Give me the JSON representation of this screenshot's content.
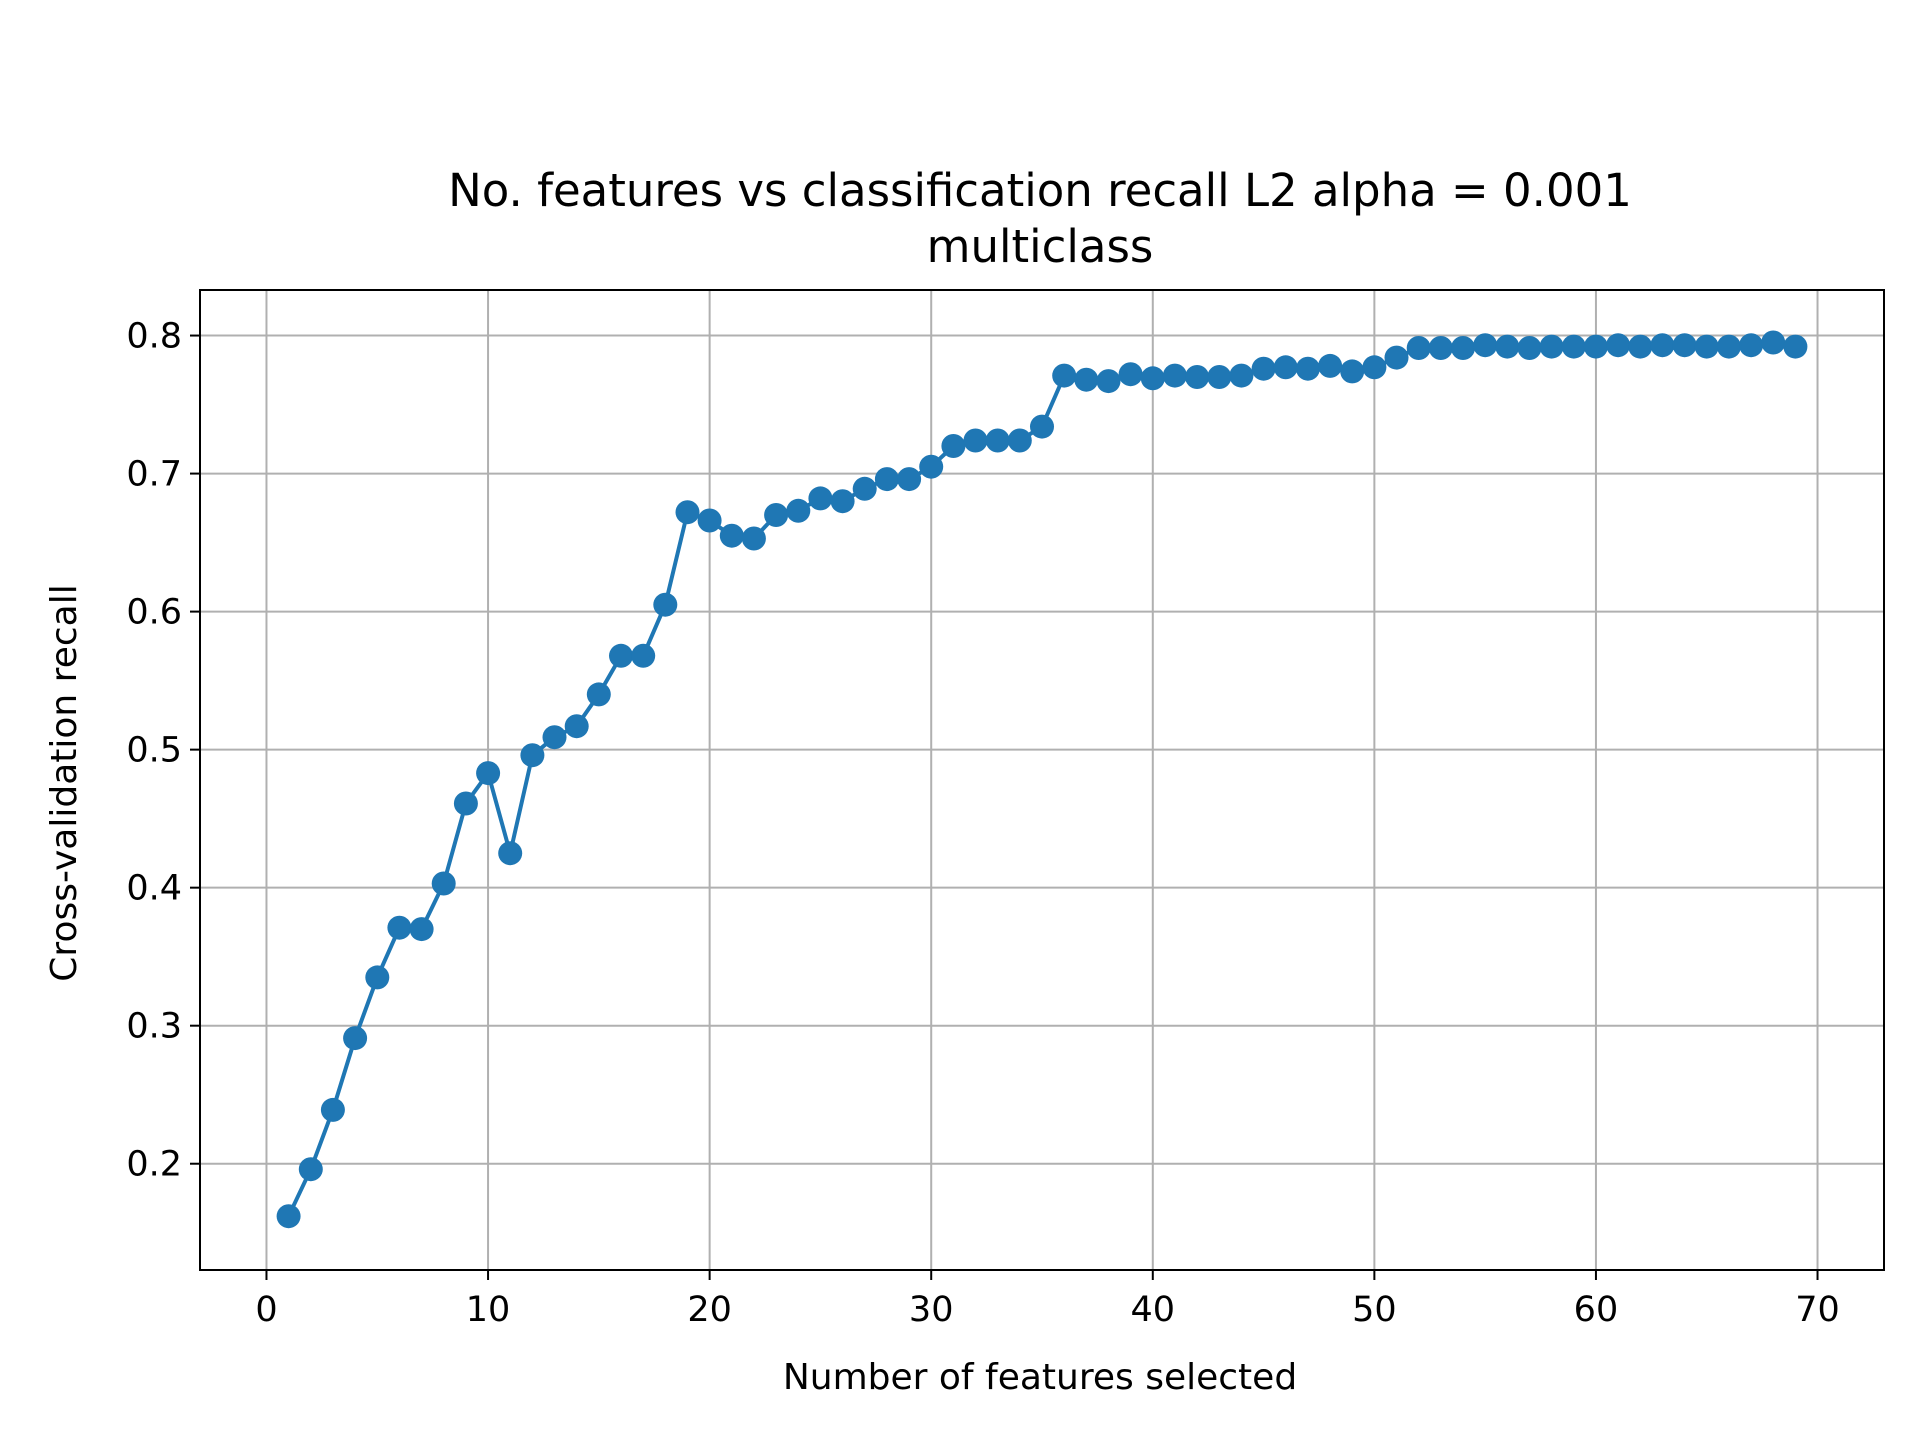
{
  "chart_data": {
    "type": "line",
    "title": "No. features vs classification recall L2 alpha = 0.001",
    "subtitle": "multiclass",
    "xlabel": "Number of features selected",
    "ylabel": "Cross-validation recall",
    "xlim": [
      -3,
      73
    ],
    "ylim": [
      0.123,
      0.833
    ],
    "xticks": [
      0,
      10,
      20,
      30,
      40,
      50,
      60,
      70
    ],
    "yticks": [
      0.2,
      0.3,
      0.4,
      0.5,
      0.6,
      0.7,
      0.8
    ],
    "xtick_labels": [
      "0",
      "10",
      "20",
      "30",
      "40",
      "50",
      "60",
      "70"
    ],
    "ytick_labels": [
      "0.2",
      "0.3",
      "0.4",
      "0.5",
      "0.6",
      "0.7",
      "0.8"
    ],
    "grid": true,
    "marker": "circle",
    "series": [
      {
        "color": "#1f77b4",
        "x": [
          1,
          2,
          3,
          4,
          5,
          6,
          7,
          8,
          9,
          10,
          11,
          12,
          13,
          14,
          15,
          16,
          17,
          18,
          19,
          20,
          21,
          22,
          23,
          24,
          25,
          26,
          27,
          28,
          29,
          30,
          31,
          32,
          33,
          34,
          35,
          36,
          37,
          38,
          39,
          40,
          41,
          42,
          43,
          44,
          45,
          46,
          47,
          48,
          49,
          50,
          51,
          52,
          53,
          54,
          55,
          56,
          57,
          58,
          59,
          60,
          61,
          62,
          63,
          64,
          65,
          66,
          67,
          68,
          69
        ],
        "values": [
          0.162,
          0.196,
          0.239,
          0.291,
          0.335,
          0.371,
          0.37,
          0.403,
          0.461,
          0.483,
          0.425,
          0.496,
          0.509,
          0.517,
          0.54,
          0.568,
          0.568,
          0.605,
          0.672,
          0.666,
          0.655,
          0.653,
          0.67,
          0.673,
          0.682,
          0.68,
          0.689,
          0.696,
          0.696,
          0.705,
          0.72,
          0.724,
          0.724,
          0.724,
          0.734,
          0.771,
          0.768,
          0.767,
          0.772,
          0.769,
          0.771,
          0.77,
          0.77,
          0.771,
          0.776,
          0.777,
          0.776,
          0.778,
          0.774,
          0.777,
          0.784,
          0.791,
          0.791,
          0.791,
          0.793,
          0.792,
          0.791,
          0.792,
          0.792,
          0.792,
          0.793,
          0.792,
          0.793,
          0.793,
          0.792,
          0.792,
          0.793,
          0.795,
          0.792
        ]
      }
    ]
  }
}
